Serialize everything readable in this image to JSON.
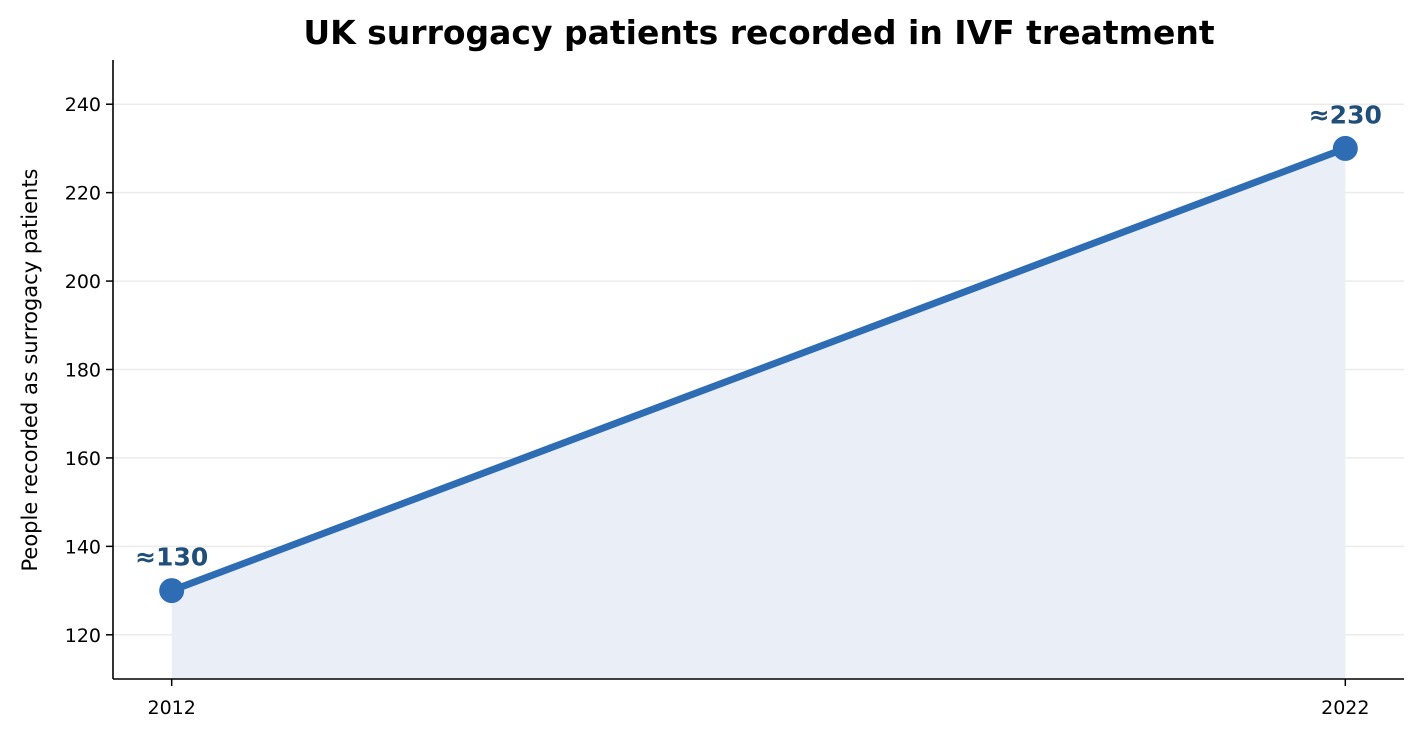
{
  "chart_data": {
    "type": "line",
    "title": "UK surrogacy patients recorded in IVF treatment",
    "xlabel": "",
    "ylabel": "People recorded as surrogacy patients",
    "x": [
      2012,
      2022
    ],
    "x_tick_labels": [
      "2012",
      "2022"
    ],
    "series": [
      {
        "values": [
          130,
          230
        ],
        "data_labels": [
          "≈130",
          "≈230"
        ],
        "color": "#2e6db4",
        "label_color": "#1f4e79",
        "fill_color": "#eaeff7"
      }
    ],
    "xlim": [
      2011.5,
      2022.5
    ],
    "ylim": [
      110,
      250
    ],
    "y_ticks": [
      120,
      140,
      160,
      180,
      200,
      220,
      240
    ],
    "y_tick_labels": [
      "120",
      "140",
      "160",
      "180",
      "200",
      "220",
      "240"
    ],
    "grid": "horizontal",
    "area_fill": true,
    "legend": "none"
  }
}
